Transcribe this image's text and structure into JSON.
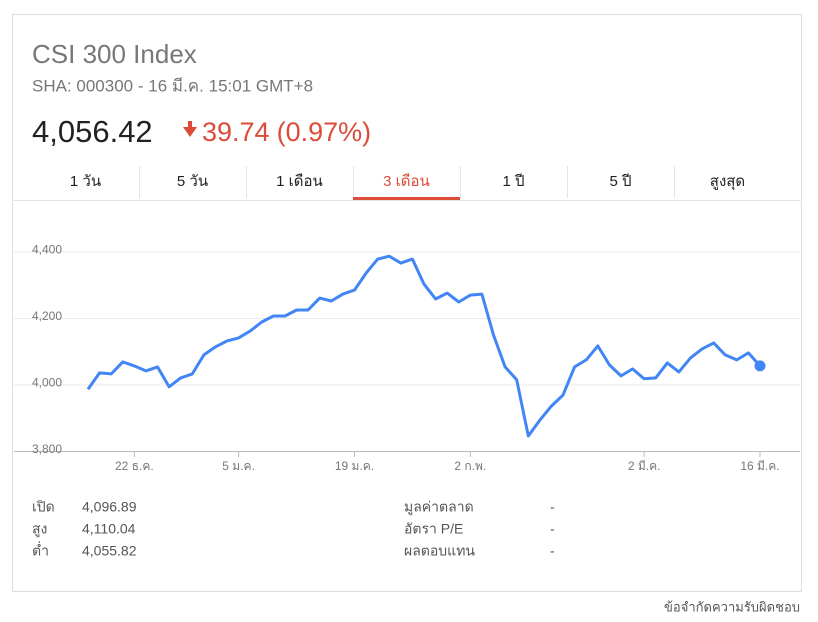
{
  "header": {
    "title": "CSI 300 Index",
    "subtitle": "SHA: 000300 - 16 มี.ค. 15:01 GMT+8",
    "price": "4,056.42",
    "change": "39.74",
    "change_percent": "(0.97%)"
  },
  "tabs": [
    "1 วัน",
    "5 วัน",
    "1 เดือน",
    "3 เดือน",
    "1 ปี",
    "5 ปี",
    "สูงสุด"
  ],
  "chart_data": {
    "type": "line",
    "categories": [
      null,
      null,
      null,
      null,
      "22 ธ.ค.",
      null,
      null,
      null,
      null,
      null,
      null,
      null,
      null,
      "5 ม.ค.",
      null,
      null,
      null,
      null,
      null,
      null,
      null,
      null,
      null,
      "19 ม.ค.",
      null,
      null,
      null,
      null,
      null,
      null,
      null,
      null,
      null,
      "2 ก.พ.",
      null,
      null,
      null,
      null,
      null,
      null,
      null,
      null,
      null,
      null,
      null,
      null,
      null,
      null,
      "2 มี.ค.",
      null,
      null,
      null,
      null,
      null,
      null,
      null,
      null,
      null,
      "16 มี.ค."
    ],
    "values": [
      3986,
      4035,
      4032,
      4068,
      4056,
      4041,
      4053,
      3993,
      4020,
      4032,
      4089,
      4113,
      4131,
      4140,
      4161,
      4188,
      4206,
      4206,
      4224,
      4224,
      4260,
      4251,
      4272,
      4284,
      4335,
      4377,
      4386,
      4365,
      4377,
      4302,
      4257,
      4275,
      4248,
      4269,
      4272,
      4149,
      4053,
      4014,
      3845,
      3893,
      3935,
      3968,
      4053,
      4074,
      4116,
      4059,
      4026,
      4047,
      4017,
      4020,
      4065,
      4038,
      4080,
      4107,
      4125,
      4089,
      4074,
      4095,
      4056
    ],
    "color": "#4285f4",
    "ylim": [
      3800,
      4545
    ],
    "yticks": [
      {
        "value": 3800,
        "label": "3,800"
      },
      {
        "value": 4000,
        "label": "4,000"
      },
      {
        "value": 4200,
        "label": "4,200"
      },
      {
        "value": 4400,
        "label": "4,400"
      }
    ],
    "grid": true
  },
  "stats": {
    "left": [
      [
        "เปิด",
        "4,096.89"
      ],
      [
        "สูง",
        "4,110.04"
      ],
      [
        "ต่ำ",
        "4,055.82"
      ]
    ],
    "right": [
      [
        "มูลค่าตลาด",
        "-"
      ],
      [
        "อัตรา P/E",
        "-"
      ],
      [
        "ผลตอบแทน",
        "-"
      ]
    ]
  },
  "footer": "ข้อจำกัดความรับผิดชอบ"
}
